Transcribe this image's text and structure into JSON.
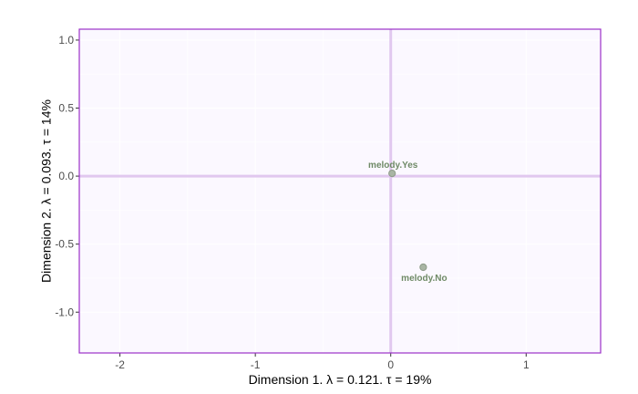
{
  "chart_data": {
    "type": "scatter",
    "xlabel": "Dimension 1.   λ = 0.121.  τ = 19%",
    "ylabel": "Dimension 2.   λ = 0.093.  τ = 14%",
    "xlim": [
      -2.3,
      1.55
    ],
    "ylim": [
      -1.3,
      1.08
    ],
    "x_ticks": [
      -2,
      -1,
      0,
      1
    ],
    "x_tick_labels": [
      "-2",
      "-1",
      "0",
      "1"
    ],
    "y_ticks": [
      1.0,
      0.5,
      0.0,
      -0.5,
      -1.0
    ],
    "y_tick_labels": [
      "1.0",
      "0.5",
      "0.0",
      "-0.5",
      "-1.0"
    ],
    "grid": true,
    "reference_lines": {
      "x": 0,
      "y": 0
    },
    "points": [
      {
        "label": "melody.Yes",
        "x": 0.01,
        "y": 0.02,
        "label_position": "above"
      },
      {
        "label": "melody.No",
        "x": 0.24,
        "y": -0.67,
        "label_position": "below"
      }
    ],
    "colors": {
      "panel_border": "#9b30c8",
      "panel_background": "#fbf8ff",
      "grid": "#ffffff",
      "reference_line": "#e1c8ef",
      "point_fill": "#a9b5a4",
      "point_stroke": "#8c9a87",
      "point_label": "#6f8a66"
    }
  }
}
